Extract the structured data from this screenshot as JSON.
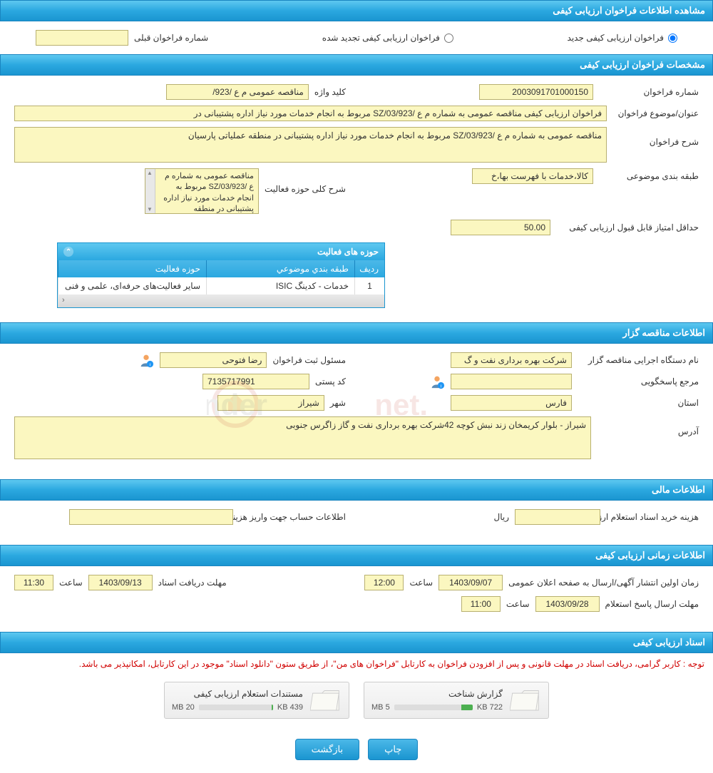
{
  "sections": {
    "view_info": "مشاهده اطلاعات فراخوان ارزیابی کیفی",
    "call_spec": "مشخصات فراخوان ارزیابی کیفی",
    "organizer": "اطلاعات مناقصه گزار",
    "financial": "اطلاعات مالی",
    "timing": "اطلاعات زمانی ارزیابی کیفی",
    "docs": "اسناد ارزیابی کیفی"
  },
  "type_selector": {
    "new_label": "فراخوان ارزیابی کیفی جدید",
    "renewed_label": "فراخوان ارزیابی کیفی تجدید شده",
    "prev_number_label": "شماره فراخوان قبلی",
    "prev_number_value": ""
  },
  "call": {
    "number_label": "شماره فراخوان",
    "number_value": "2003091701000150",
    "keyword_label": "کلید واژه",
    "keyword_value": "مناقصه عمومی  م ع /923/",
    "title_label": "عنوان/موضوع فراخوان",
    "title_value": "فراخوان ارزیابی کیفی مناقصه عمومی به شماره م ع /SZ/03/923 مربوط به انجام خدمات مورد نیاز اداره پشتیبانی در",
    "desc_label": "شرح فراخوان",
    "desc_value": "مناقصه عمومی به شماره م ع /SZ/03/923 مربوط به انجام خدمات مورد نیاز اداره پشتیبانی در منطقه عملیاتی پارسیان",
    "category_label": "طبقه بندی موضوعی",
    "category_value": "کالا،خدمات با فهرست بها،خ",
    "activity_desc_label": "شرح کلی حوزه فعالیت",
    "activity_desc_value": "مناقصه عمومی به شماره م ع /SZ/03/923 مربوط به انجام خدمات مورد نیاز اداره پشتیبانی در منطقه",
    "min_score_label": "حداقل امتیاز قابل قبول ارزیابی کیفی",
    "min_score_value": "50.00"
  },
  "activity_table": {
    "title": "حوزه های فعالیت",
    "col_idx": "ردیف",
    "col_category": "طبقه بندي موضوعي",
    "col_activity": "حوزه فعالیت",
    "rows": [
      {
        "idx": "1",
        "category": "خدمات - کدینگ ISIC",
        "activity": "سایر فعالیت‌های حرفه‌ای، علمی و فنی"
      }
    ]
  },
  "organizer": {
    "exec_label": "نام دستگاه اجرایی مناقصه گزار",
    "exec_value": "شرکت بهره برداری نفت و گ",
    "registrar_label": "مسئول ثبت فراخوان",
    "registrar_value": "رضا فتوحی",
    "responder_label": "مرجع پاسخگویی",
    "responder_value": "",
    "postal_label": "کد پستی",
    "postal_value": "7135717991",
    "province_label": "استان",
    "province_value": "فارس",
    "city_label": "شهر",
    "city_value": "شیراز",
    "address_label": "آدرس",
    "address_value": "شیراز - بلوار کریمخان زند نبش کوچه 42شرکت بهره برداری نفت و گاز زاگرس جنوبی"
  },
  "financial": {
    "doc_cost_label": "هزینه خرید اسناد استعلام ارزیابی کیفی",
    "doc_cost_value": "",
    "currency": "ریال",
    "account_info_label": "اطلاعات حساب جهت واریز هزینه خرید اسناد",
    "account_info_value": ""
  },
  "timing": {
    "publish_label": "زمان اولین انتشار آگهی/ارسال به صفحه اعلان عمومی",
    "publish_date": "1403/09/07",
    "publish_time_label": "ساعت",
    "publish_time": "12:00",
    "deadline_doc_label": "مهلت دریافت اسناد",
    "deadline_doc_date": "1403/09/13",
    "deadline_doc_time": "11:30",
    "deadline_resp_label": "مهلت ارسال پاسخ استعلام",
    "deadline_resp_date": "1403/09/28",
    "deadline_resp_time": "11:00"
  },
  "docs": {
    "notice": "توجه : کاربر گرامی، دریافت اسناد در مهلت قانونی و پس از افزودن فراخوان به کارتابل \"فراخوان های من\"، از طریق ستون \"دانلود اسناد\" موجود در این کارتابل، امکانپذیر می باشد.",
    "items": [
      {
        "title": "گزارش شناخت",
        "size": "722 KB",
        "max": "5 MB",
        "fill_pct": 14
      },
      {
        "title": "مستندات استعلام ارزیابی کیفی",
        "size": "439 KB",
        "max": "20 MB",
        "fill_pct": 2
      }
    ]
  },
  "buttons": {
    "print": "چاپ",
    "back": "بازگشت"
  },
  "colors": {
    "header_grad_top": "#5ec8f0",
    "header_grad_bot": "#1a95d0",
    "field_bg": "#fbf7c0",
    "field_border": "#b8b070",
    "notice_color": "#d00000",
    "progress_fill": "#4caf50"
  }
}
